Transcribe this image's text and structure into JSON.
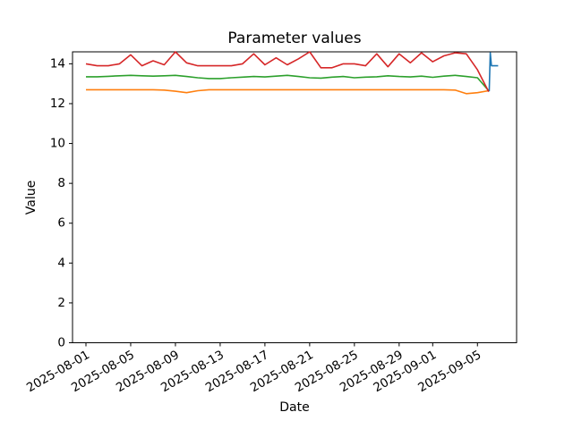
{
  "figure": {
    "background": "#ffffff",
    "title": "Parameter values"
  },
  "chart_data": {
    "type": "line",
    "title": "Parameter values",
    "xlabel": "Date",
    "ylabel": "Value",
    "grid": false,
    "legend": "none",
    "start_date": "2025-08-01",
    "x_unit": "days since 2025-08-01",
    "xlim": [
      -1.2,
      38.5
    ],
    "ylim": [
      0,
      14.6
    ],
    "y_ticks": [
      0,
      2,
      4,
      6,
      8,
      10,
      12,
      14
    ],
    "x_ticks": [
      {
        "day": 0,
        "label": "2025-08-01"
      },
      {
        "day": 4,
        "label": "2025-08-05"
      },
      {
        "day": 8,
        "label": "2025-08-09"
      },
      {
        "day": 12,
        "label": "2025-08-13"
      },
      {
        "day": 16,
        "label": "2025-08-17"
      },
      {
        "day": 20,
        "label": "2025-08-21"
      },
      {
        "day": 24,
        "label": "2025-08-25"
      },
      {
        "day": 28,
        "label": "2025-08-29"
      },
      {
        "day": 31,
        "label": "2025-09-01"
      },
      {
        "day": 35,
        "label": "2025-09-05"
      }
    ],
    "series": [
      {
        "name": "blue-series",
        "color": "#1f77b4",
        "x": [
          36.05,
          36.15,
          36.25,
          36.85
        ],
        "values": [
          12.62,
          14.55,
          13.9,
          13.9
        ]
      },
      {
        "name": "orange-series",
        "color": "#ff7f0e",
        "x": [
          0,
          1,
          2,
          3,
          4,
          5,
          6,
          7,
          8,
          9,
          10,
          11,
          12,
          13,
          14,
          15,
          16,
          17,
          18,
          19,
          20,
          21,
          22,
          23,
          24,
          25,
          26,
          27,
          28,
          29,
          30,
          31,
          32,
          33,
          34,
          35,
          36
        ],
        "values": [
          12.7,
          12.7,
          12.7,
          12.7,
          12.7,
          12.7,
          12.7,
          12.68,
          12.62,
          12.55,
          12.65,
          12.7,
          12.7,
          12.7,
          12.7,
          12.7,
          12.7,
          12.7,
          12.7,
          12.7,
          12.7,
          12.7,
          12.7,
          12.7,
          12.7,
          12.7,
          12.7,
          12.7,
          12.7,
          12.7,
          12.7,
          12.7,
          12.7,
          12.68,
          12.5,
          12.55,
          12.65
        ]
      },
      {
        "name": "green-series",
        "color": "#2ca02c",
        "x": [
          0,
          1,
          2,
          3,
          4,
          5,
          6,
          7,
          8,
          9,
          10,
          11,
          12,
          13,
          14,
          15,
          16,
          17,
          18,
          19,
          20,
          21,
          22,
          23,
          24,
          25,
          26,
          27,
          28,
          29,
          30,
          31,
          32,
          33,
          34,
          35,
          36
        ],
        "values": [
          13.35,
          13.35,
          13.37,
          13.4,
          13.42,
          13.4,
          13.38,
          13.4,
          13.42,
          13.36,
          13.3,
          13.26,
          13.26,
          13.3,
          13.33,
          13.36,
          13.34,
          13.38,
          13.42,
          13.36,
          13.3,
          13.28,
          13.33,
          13.36,
          13.3,
          13.33,
          13.35,
          13.4,
          13.36,
          13.34,
          13.38,
          13.32,
          13.38,
          13.42,
          13.36,
          13.3,
          12.65
        ]
      },
      {
        "name": "red-series",
        "color": "#d62728",
        "x": [
          0,
          1,
          2,
          3,
          4,
          5,
          6,
          7,
          8,
          9,
          10,
          11,
          12,
          13,
          14,
          15,
          16,
          17,
          18,
          19,
          20,
          21,
          22,
          23,
          24,
          25,
          26,
          27,
          28,
          29,
          30,
          31,
          32,
          33,
          34,
          35,
          36
        ],
        "values": [
          14.0,
          13.9,
          13.9,
          14.0,
          14.45,
          13.9,
          14.15,
          13.95,
          14.6,
          14.05,
          13.9,
          13.9,
          13.9,
          13.9,
          14.0,
          14.5,
          13.95,
          14.3,
          13.95,
          14.25,
          14.6,
          13.8,
          13.8,
          14.0,
          14.0,
          13.9,
          14.5,
          13.85,
          14.5,
          14.05,
          14.55,
          14.1,
          14.4,
          14.55,
          14.5,
          13.7,
          12.6
        ]
      }
    ]
  }
}
